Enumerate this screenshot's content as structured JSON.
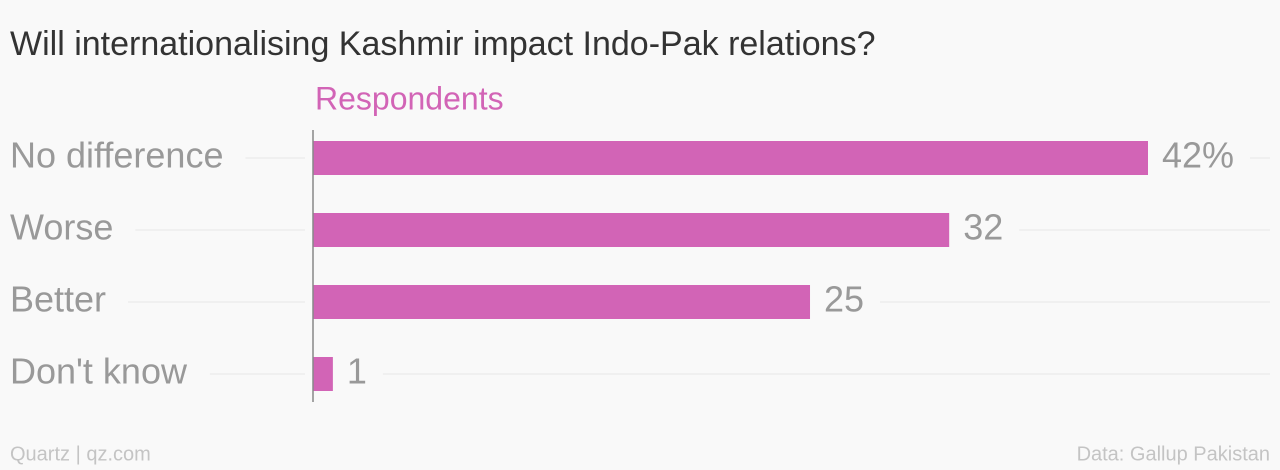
{
  "chart_data": {
    "type": "bar",
    "orientation": "horizontal",
    "title": "Will internationalising Kashmir impact Indo-Pak relations?",
    "categories": [
      "No difference",
      "Worse",
      "Better",
      "Don't know"
    ],
    "series": [
      {
        "name": "Respondents",
        "color": "#d264b6",
        "values": [
          42,
          32,
          25,
          1
        ],
        "value_labels": [
          "42%",
          "32",
          "25",
          "1"
        ]
      }
    ],
    "xlim": [
      0,
      42
    ],
    "source": "Data: Gallup Pakistan",
    "credit": "Quartz | qz.com"
  }
}
